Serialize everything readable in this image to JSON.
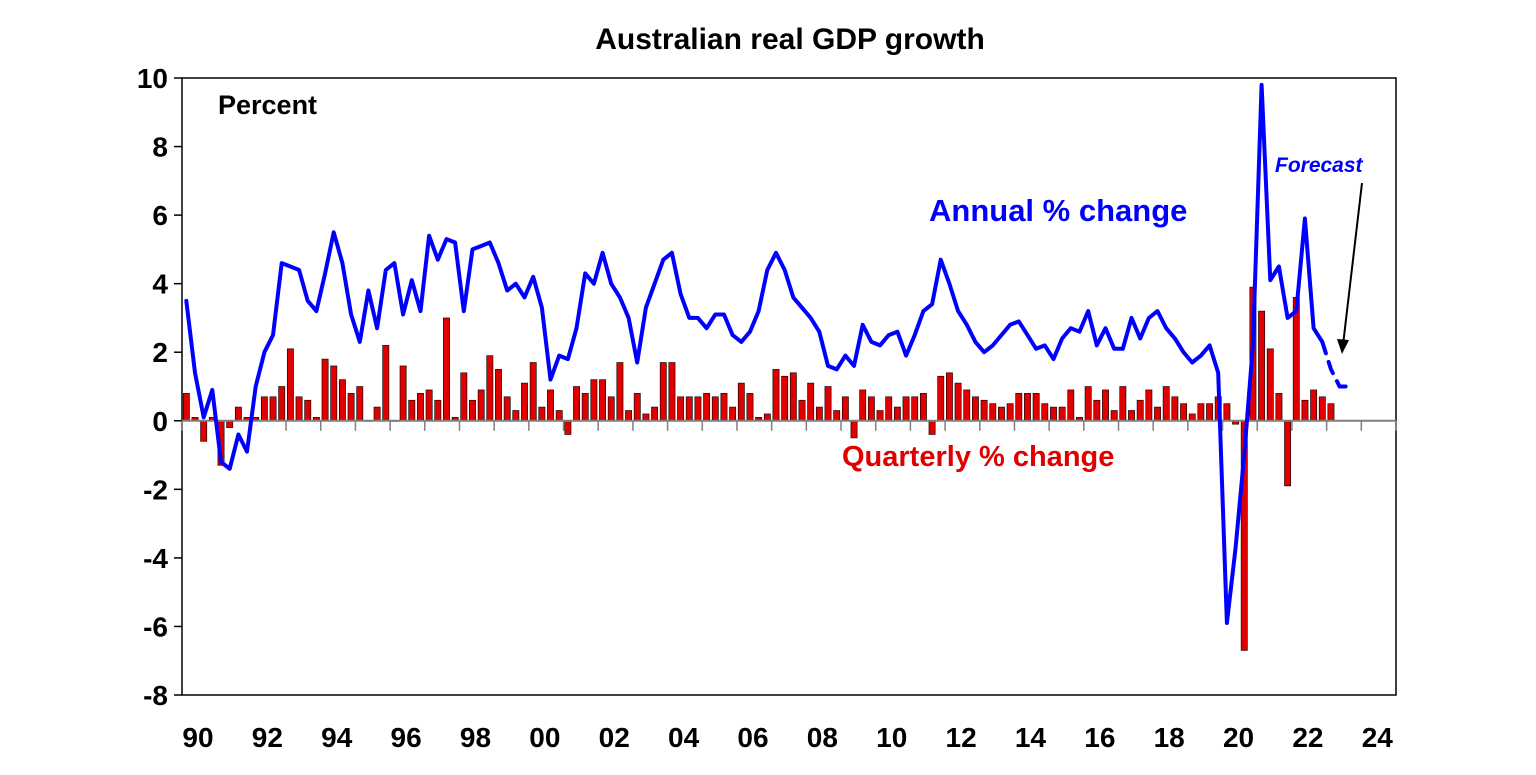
{
  "chart_data": {
    "type": "bar+line",
    "title": "Australian real GDP growth",
    "unit_label": "Percent",
    "ylim": [
      -8,
      10
    ],
    "y_ticks": [
      "10",
      "8",
      "6",
      "4",
      "2",
      "0",
      "-2",
      "-4",
      "-6",
      "-8"
    ],
    "x_range": [
      1990,
      2025
    ],
    "x_ticks": [
      {
        "x": 1990,
        "label": "90"
      },
      {
        "x": 1992,
        "label": "92"
      },
      {
        "x": 1994,
        "label": "94"
      },
      {
        "x": 1996,
        "label": "96"
      },
      {
        "x": 1998,
        "label": "98"
      },
      {
        "x": 2000,
        "label": "00"
      },
      {
        "x": 2002,
        "label": "02"
      },
      {
        "x": 2004,
        "label": "04"
      },
      {
        "x": 2006,
        "label": "06"
      },
      {
        "x": 2008,
        "label": "08"
      },
      {
        "x": 2010,
        "label": "10"
      },
      {
        "x": 2012,
        "label": "12"
      },
      {
        "x": 2014,
        "label": "14"
      },
      {
        "x": 2016,
        "label": "16"
      },
      {
        "x": 2018,
        "label": "18"
      },
      {
        "x": 2020,
        "label": "20"
      },
      {
        "x": 2022,
        "label": "22"
      },
      {
        "x": 2024,
        "label": "24"
      }
    ],
    "grid": false,
    "series": [
      {
        "name": "Quarterly % change",
        "kind": "bar",
        "color": "#e00000",
        "x_start": 1990.0,
        "x_step": 0.25,
        "values": [
          0.8,
          0.1,
          -0.6,
          0.1,
          -1.3,
          -0.2,
          0.4,
          0.1,
          0.1,
          0.7,
          0.7,
          1.0,
          2.1,
          0.7,
          0.6,
          0.1,
          1.8,
          1.6,
          1.2,
          0.8,
          1.0,
          0.0,
          0.4,
          2.2,
          0.0,
          1.6,
          0.6,
          0.8,
          0.9,
          0.6,
          3.0,
          0.1,
          1.4,
          0.6,
          0.9,
          1.9,
          1.5,
          0.7,
          0.3,
          1.1,
          1.7,
          0.4,
          0.9,
          0.3,
          -0.4,
          1.0,
          0.8,
          1.2,
          1.2,
          0.7,
          1.7,
          0.3,
          0.8,
          0.2,
          0.4,
          1.7,
          1.7,
          0.7,
          0.7,
          0.7,
          0.8,
          0.7,
          0.8,
          0.4,
          1.1,
          0.8,
          0.1,
          0.2,
          1.5,
          1.3,
          1.4,
          0.6,
          1.1,
          0.4,
          1.0,
          0.3,
          0.7,
          -0.5,
          0.9,
          0.7,
          0.3,
          0.7,
          0.4,
          0.7,
          0.7,
          0.8,
          -0.4,
          1.3,
          1.4,
          1.1,
          0.9,
          0.7,
          0.6,
          0.5,
          0.4,
          0.5,
          0.8,
          0.8,
          0.8,
          0.5,
          0.4,
          0.4,
          0.9,
          0.1,
          1.0,
          0.6,
          0.9,
          0.3,
          1.0,
          0.3,
          0.6,
          0.9,
          0.4,
          1.0,
          0.7,
          0.5,
          0.2,
          0.5,
          0.5,
          0.7,
          0.5,
          -0.1,
          -6.7,
          3.9,
          3.2,
          2.1,
          0.8,
          -1.9,
          3.6,
          0.6,
          0.9,
          0.7,
          0.5
        ]
      },
      {
        "name": "Annual % change",
        "kind": "line",
        "color": "#0000ff",
        "x_start": 1990.0,
        "x_step": 0.25,
        "values": [
          3.5,
          1.4,
          0.1,
          0.9,
          -1.2,
          -1.4,
          -0.4,
          -0.9,
          1.0,
          2.0,
          2.5,
          4.6,
          4.5,
          4.4,
          3.5,
          3.2,
          4.3,
          5.5,
          4.6,
          3.1,
          2.3,
          3.8,
          2.7,
          4.4,
          4.6,
          3.1,
          4.1,
          3.2,
          5.4,
          4.7,
          5.3,
          5.2,
          3.2,
          5.0,
          5.1,
          5.2,
          4.6,
          3.8,
          4.0,
          3.6,
          4.2,
          3.3,
          1.2,
          1.9,
          1.8,
          2.7,
          4.3,
          4.0,
          4.9,
          4.0,
          3.6,
          3.0,
          1.7,
          3.3,
          4.0,
          4.7,
          4.9,
          3.7,
          3.0,
          3.0,
          2.7,
          3.1,
          3.1,
          2.5,
          2.3,
          2.6,
          3.2,
          4.4,
          4.9,
          4.4,
          3.6,
          3.3,
          3.0,
          2.6,
          1.6,
          1.5,
          1.9,
          1.6,
          2.8,
          2.3,
          2.2,
          2.5,
          2.6,
          1.9,
          2.5,
          3.2,
          3.4,
          4.7,
          4.0,
          3.2,
          2.8,
          2.3,
          2.0,
          2.2,
          2.5,
          2.8,
          2.9,
          2.5,
          2.1,
          2.2,
          1.8,
          2.4,
          2.7,
          2.6,
          3.2,
          2.2,
          2.7,
          2.1,
          2.1,
          3.0,
          2.4,
          3.0,
          3.2,
          2.7,
          2.4,
          2.0,
          1.7,
          1.9,
          2.2,
          1.4,
          -5.9,
          -3.7,
          -1.0,
          2.2,
          9.8,
          4.1,
          4.5,
          3.0,
          3.2,
          5.9,
          2.7,
          2.3
        ]
      },
      {
        "name": "Forecast",
        "kind": "line-dashed",
        "color": "#0000ff",
        "x_start": 2022.75,
        "x_step": 0.25,
        "values": [
          2.3,
          1.5,
          1.0,
          1.0
        ]
      }
    ],
    "annotations": [
      {
        "text": "Annual % change",
        "color": "#0000ff"
      },
      {
        "text": "Quarterly % change",
        "color": "#e00000"
      },
      {
        "text": "Forecast",
        "color": "#0000ff",
        "arrow": true
      }
    ]
  }
}
